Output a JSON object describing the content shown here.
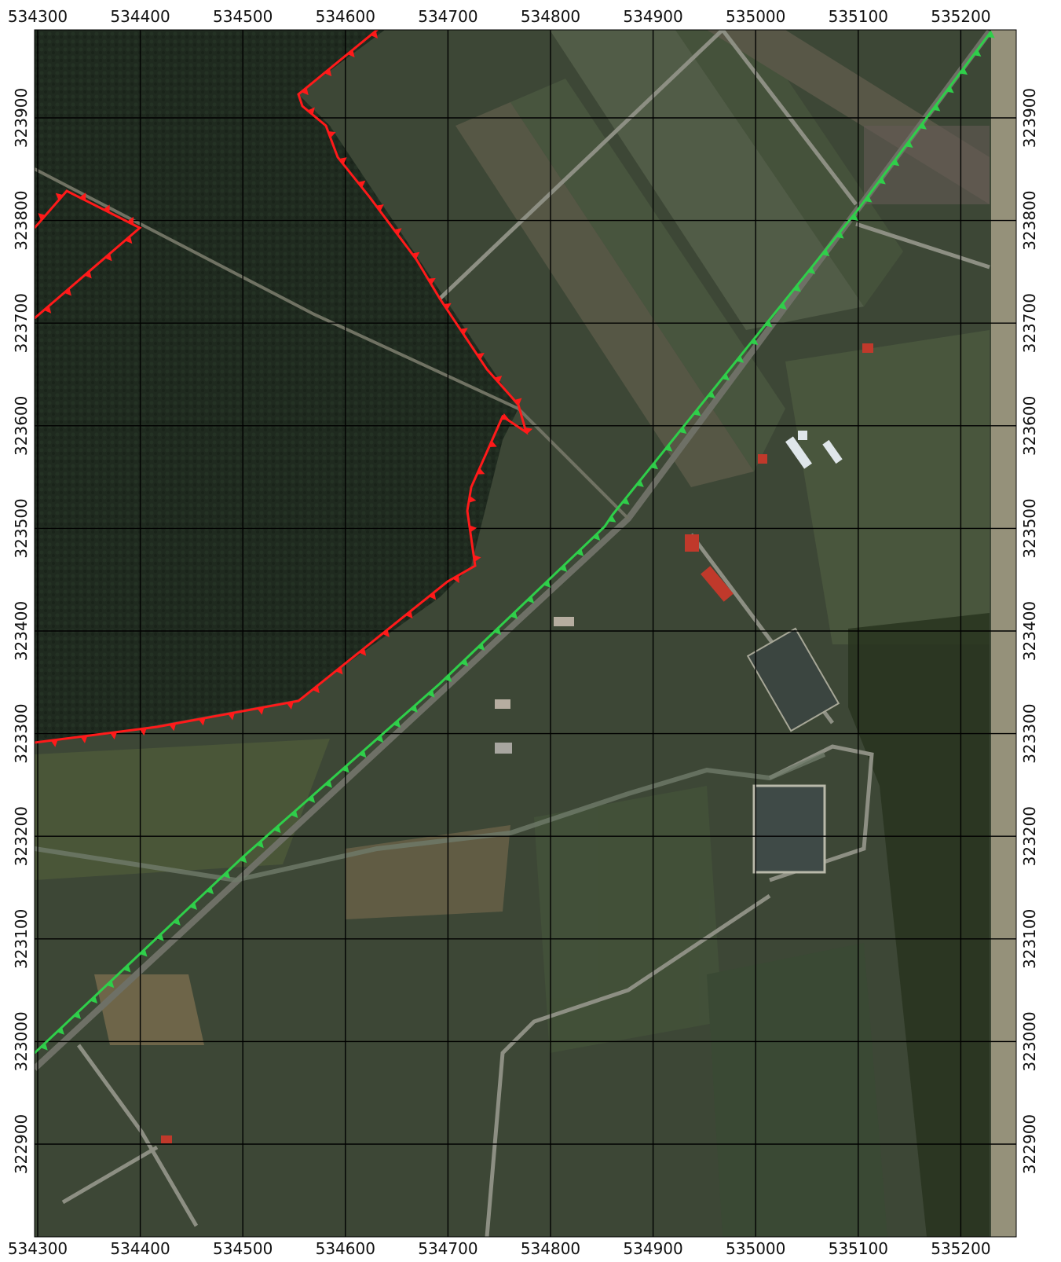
{
  "map": {
    "grid_x_labels": [
      "534300",
      "534400",
      "534500",
      "534600",
      "534700",
      "534800",
      "534900",
      "535000",
      "535100",
      "535200"
    ],
    "grid_y_labels": [
      "323900",
      "323800",
      "323700",
      "323600",
      "323500",
      "323400",
      "323300",
      "323200",
      "323100",
      "323000",
      "322900"
    ],
    "colors": {
      "frame": "#ffffff",
      "grid_line": "#000000",
      "label_text": "#111111",
      "boundary_red": "#ff1a1a",
      "boundary_green": "#2fcf4a",
      "forest": "#1f2a1f",
      "field": "#3c4a34",
      "field_light": "#55604a",
      "road": "#8d8f83",
      "river": "#4a5a4a",
      "roof_red": "#c0392b",
      "roof_white": "#dfe6ea"
    },
    "layers": {
      "imagery": "orthophoto",
      "red_boundary": "red-boundary-line",
      "green_boundary": "green-boundary-line"
    }
  }
}
